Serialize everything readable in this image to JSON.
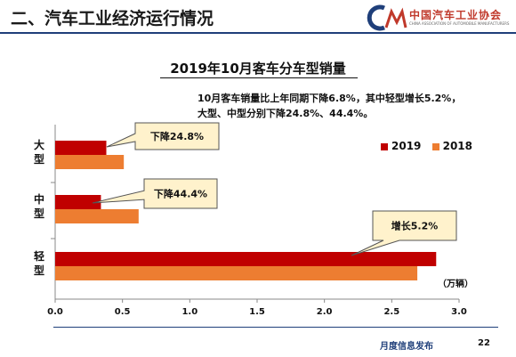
{
  "header": {
    "title": "二、汽车工业经济运行情况",
    "logo_text": "中国汽车工业协会",
    "logo_sub": "CHINA ASSOCIATION OF AUTOMOBILE MANUFACTURERS"
  },
  "note": "10月客车销量比上年同期下降6.8%，其中轻型增长5.2%，大型、中型分别下降24.8%、44.4%。",
  "footer": {
    "text": "月度信息发布",
    "page": "22"
  },
  "colors": {
    "s2019": "#c00000",
    "s2018": "#ed7d31",
    "header_line": "#1f3f7a",
    "callout_bg": "#fff2cc"
  },
  "chart_data": {
    "type": "bar",
    "orientation": "horizontal",
    "title": "2019年10月客车分车型销量",
    "categories": [
      "大型",
      "中型",
      "轻型"
    ],
    "series": [
      {
        "name": "2019",
        "values": [
          0.38,
          0.34,
          2.83
        ]
      },
      {
        "name": "2018",
        "values": [
          0.51,
          0.62,
          2.69
        ]
      }
    ],
    "xlim": [
      0,
      3.0
    ],
    "x_ticks": [
      "0.0",
      "0.5",
      "1.0",
      "1.5",
      "2.0",
      "2.5",
      "3.0"
    ],
    "unit_label": "（万辆）",
    "legend_position": "right",
    "annotations": [
      "下降24.8%",
      "下降44.4%",
      "增长5.2%"
    ]
  }
}
